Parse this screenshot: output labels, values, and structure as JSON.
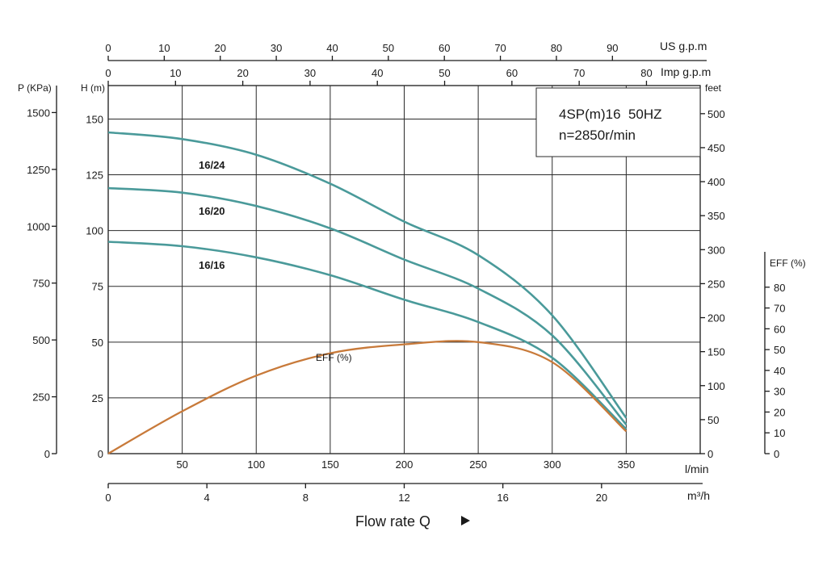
{
  "chart_data": {
    "type": "line",
    "title": "4SP(m)16  50HZ",
    "subtitle": "n=2850r/min",
    "x_axes": {
      "us_gpm": {
        "label": "US g.p.m",
        "ticks": [
          "0",
          "10",
          "20",
          "30",
          "40",
          "50",
          "60",
          "70",
          "80",
          "90"
        ]
      },
      "imp_gpm": {
        "label": "Imp g.p.m",
        "ticks": [
          "0",
          "10",
          "20",
          "30",
          "40",
          "50",
          "60",
          "70",
          "80"
        ]
      },
      "lmin": {
        "label": "l/min",
        "ticks": [
          "50",
          "100",
          "150",
          "200",
          "250",
          "300",
          "350"
        ],
        "range": [
          0,
          400
        ]
      },
      "m3h": {
        "label": "m³/h",
        "ticks": [
          "0",
          "4",
          "8",
          "12",
          "16",
          "20"
        ]
      }
    },
    "y_axes": {
      "pressure": {
        "label": "P (KPa)",
        "ticks": [
          "0",
          "250",
          "500",
          "750",
          "1000",
          "1250",
          "1500"
        ]
      },
      "head": {
        "label": "H (m)",
        "ticks": [
          "0",
          "25",
          "50",
          "75",
          "100",
          "125",
          "150"
        ],
        "range": [
          0,
          165
        ]
      },
      "feet": {
        "label": "feet",
        "ticks": [
          "0",
          "50",
          "100",
          "150",
          "200",
          "250",
          "300",
          "350",
          "400",
          "450",
          "500"
        ]
      },
      "eff": {
        "label": "EFF (%)",
        "ticks": [
          "0",
          "10",
          "20",
          "30",
          "40",
          "50",
          "60",
          "70",
          "80"
        ]
      }
    },
    "grid": true,
    "xlabel": "Flow rate Q",
    "series": [
      {
        "name": "16/24",
        "color": "#4a9a9a",
        "points": [
          [
            0,
            144
          ],
          [
            50,
            141
          ],
          [
            100,
            134
          ],
          [
            150,
            121
          ],
          [
            200,
            104
          ],
          [
            250,
            89
          ],
          [
            300,
            62
          ],
          [
            350,
            16
          ]
        ]
      },
      {
        "name": "16/20",
        "color": "#4a9a9a",
        "points": [
          [
            0,
            119
          ],
          [
            50,
            117
          ],
          [
            100,
            111
          ],
          [
            150,
            101
          ],
          [
            200,
            87
          ],
          [
            250,
            74
          ],
          [
            300,
            53
          ],
          [
            350,
            13
          ]
        ]
      },
      {
        "name": "16/16",
        "color": "#4a9a9a",
        "points": [
          [
            0,
            95
          ],
          [
            50,
            93
          ],
          [
            100,
            88
          ],
          [
            150,
            80
          ],
          [
            200,
            69
          ],
          [
            250,
            59
          ],
          [
            300,
            43
          ],
          [
            350,
            11
          ]
        ]
      },
      {
        "name": "EFF (%)",
        "color": "#c87a3a",
        "points": [
          [
            0,
            0
          ],
          [
            50,
            19
          ],
          [
            100,
            35
          ],
          [
            150,
            45
          ],
          [
            200,
            49
          ],
          [
            250,
            50
          ],
          [
            300,
            41
          ],
          [
            350,
            10
          ]
        ]
      }
    ]
  }
}
